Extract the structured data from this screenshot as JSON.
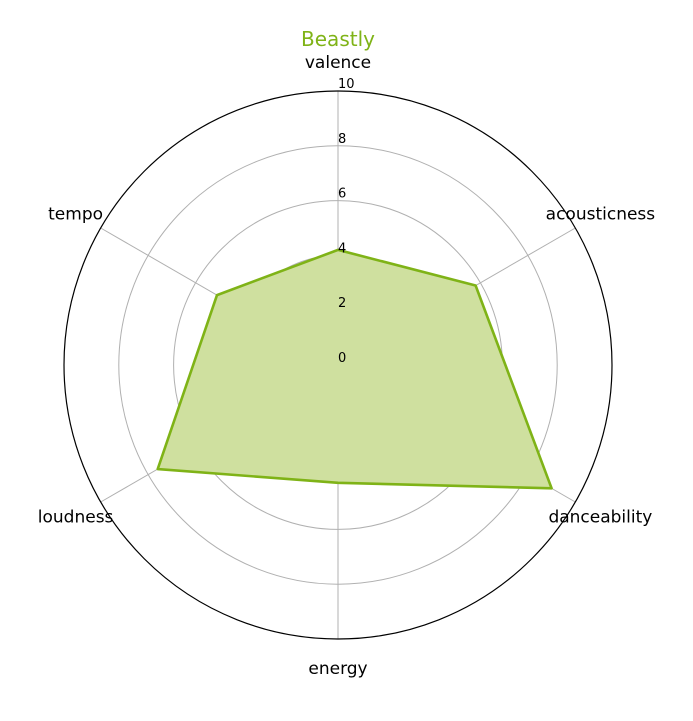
{
  "chart_data": {
    "type": "radar",
    "title": "Beastly",
    "axes": [
      "valence",
      "acousticness",
      "danceability",
      "energy",
      "loudness",
      "tempo"
    ],
    "series": [
      {
        "name": "Beastly",
        "values": [
          4.2,
          5.8,
          9.0,
          4.3,
          7.6,
          5.1
        ]
      }
    ],
    "rlim": [
      0,
      10
    ],
    "rticks": [
      "0",
      "2",
      "4",
      "6",
      "8",
      "10"
    ],
    "grid": true,
    "colors": {
      "series": "#7fb317",
      "fill": "#cfe09f",
      "grid": "#b0b0b0",
      "frame": "#000000"
    }
  }
}
